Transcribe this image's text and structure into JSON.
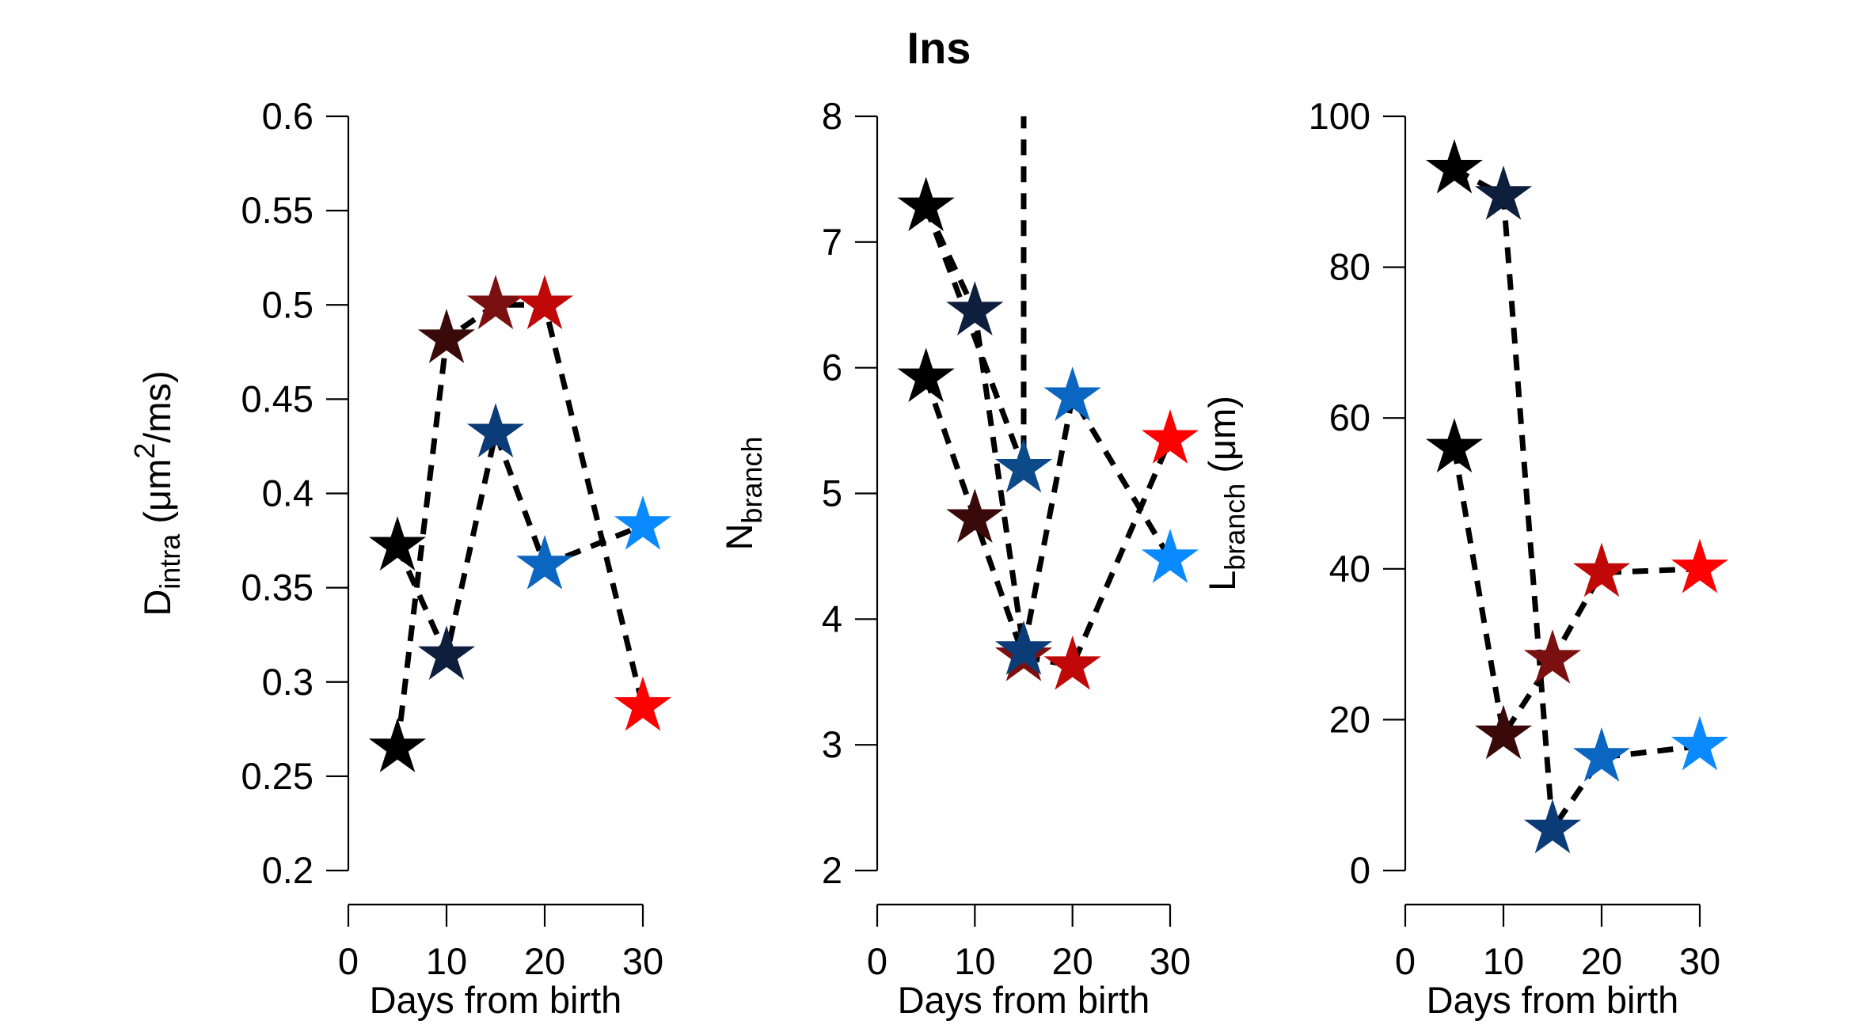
{
  "figure": {
    "title": "Ins"
  },
  "chart_data": [
    {
      "type": "scatter",
      "xlabel": "Days from birth",
      "ylabel": {
        "main": "D",
        "sub": "intra",
        "rest": " (μm",
        "sup": "2",
        "end": "/ms)"
      },
      "xlim": [
        0,
        30
      ],
      "ylim": [
        0.2,
        0.6
      ],
      "xticks": [
        0,
        10,
        20,
        30
      ],
      "yticks": [
        0.2,
        0.25,
        0.3,
        0.35,
        0.4,
        0.45,
        0.5,
        0.55,
        0.6
      ],
      "ytick_labels": [
        "0.2",
        "0.25",
        "0.3",
        "0.35",
        "0.4",
        "0.45",
        "0.5",
        "0.55",
        "0.6"
      ],
      "series": [
        {
          "points": [
            {
              "x": 5,
              "y": 0.265,
              "color": "#000000"
            },
            {
              "x": 10,
              "y": 0.482,
              "color": "#3a0a0a"
            },
            {
              "x": 15,
              "y": 0.5,
              "color": "#7a1010"
            },
            {
              "x": 20,
              "y": 0.5,
              "color": "#c00808"
            },
            {
              "x": 30,
              "y": 0.287,
              "color": "#ff0000"
            }
          ]
        },
        {
          "points": [
            {
              "x": 5,
              "y": 0.372,
              "color": "#000000"
            },
            {
              "x": 10,
              "y": 0.314,
              "color": "#0d1f3c"
            },
            {
              "x": 15,
              "y": 0.432,
              "color": "#0c3c78"
            },
            {
              "x": 20,
              "y": 0.362,
              "color": "#0a66c0"
            },
            {
              "x": 30,
              "y": 0.383,
              "color": "#0a8aff"
            }
          ]
        }
      ]
    },
    {
      "type": "scatter",
      "xlabel": "Days from birth",
      "ylabel": {
        "main": "N",
        "sub": "branch"
      },
      "xlim": [
        0,
        30
      ],
      "ylim": [
        2,
        8
      ],
      "xticks": [
        0,
        10,
        20,
        30
      ],
      "yticks": [
        2,
        3,
        4,
        5,
        6,
        7,
        8
      ],
      "ytick_labels": [
        "2",
        "3",
        "4",
        "5",
        "6",
        "7",
        "8"
      ],
      "series": [
        {
          "points": [
            {
              "x": 5,
              "y": 5.92,
              "color": "#000000"
            },
            {
              "x": 10,
              "y": 4.8,
              "color": "#3a0a0a"
            },
            {
              "x": 15,
              "y": 3.7,
              "color": "#7a1010"
            },
            {
              "x": 20,
              "y": 3.63,
              "color": "#c00808"
            },
            {
              "x": 30,
              "y": 5.43,
              "color": "#ff0000"
            }
          ]
        },
        {
          "points": [
            {
              "x": 5,
              "y": 7.28,
              "color": "#000000"
            },
            {
              "x": 10,
              "y": 6.45,
              "color": "#0d1f3c"
            },
            {
              "x": 15,
              "y": 3.75,
              "color": "#0c3c78"
            },
            {
              "x": 20,
              "y": 5.77,
              "color": "#0a66c0"
            },
            {
              "x": 30,
              "y": 4.48,
              "color": "#0a8aff"
            }
          ]
        },
        {
          "points": [
            {
              "x": 5,
              "y": 7.28
            },
            {
              "x": 15,
              "y": 5.2,
              "color": "#0c4a8a"
            },
            {
              "x": 15,
              "y": 8.0
            }
          ]
        }
      ]
    },
    {
      "type": "scatter",
      "xlabel": "Days from birth",
      "ylabel": {
        "main": "L",
        "sub": "branch",
        "rest": " (μm)"
      },
      "xlim": [
        0,
        30
      ],
      "ylim": [
        0,
        100
      ],
      "xticks": [
        0,
        10,
        20,
        30
      ],
      "yticks": [
        0,
        20,
        40,
        60,
        80,
        100
      ],
      "ytick_labels": [
        "0",
        "20",
        "40",
        "60",
        "80",
        "100"
      ],
      "series": [
        {
          "points": [
            {
              "x": 5,
              "y": 56,
              "color": "#000000"
            },
            {
              "x": 10,
              "y": 18,
              "color": "#3a0a0a"
            },
            {
              "x": 15,
              "y": 28,
              "color": "#7a1010"
            },
            {
              "x": 20,
              "y": 39.5,
              "color": "#c00808"
            },
            {
              "x": 30,
              "y": 40,
              "color": "#ff0000"
            }
          ]
        },
        {
          "points": [
            {
              "x": 5,
              "y": 93,
              "color": "#000000"
            },
            {
              "x": 10,
              "y": 89.5,
              "color": "#0d1f3c"
            },
            {
              "x": 15,
              "y": 5.5,
              "color": "#0c3c78"
            },
            {
              "x": 20,
              "y": 15,
              "color": "#0a66c0"
            },
            {
              "x": 30,
              "y": 16.5,
              "color": "#0a8aff"
            }
          ]
        }
      ]
    }
  ]
}
